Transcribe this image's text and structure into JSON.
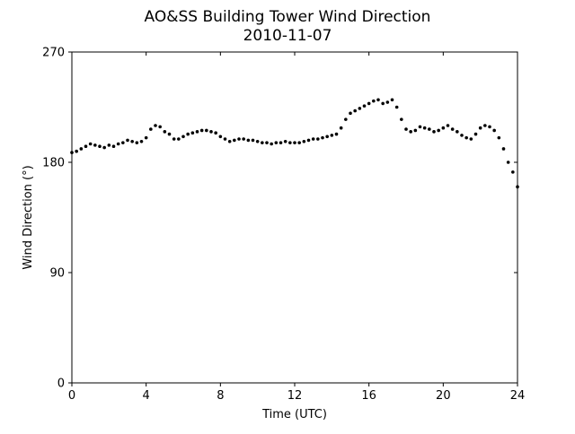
{
  "chart_data": {
    "type": "scatter",
    "title": "AO&SS Building Tower Wind Direction",
    "subtitle": "2010-11-07",
    "xlabel": "Time (UTC)",
    "ylabel": "Wind Direction (°)",
    "xlim": [
      0,
      24
    ],
    "ylim": [
      0,
      270
    ],
    "xticks": [
      "0",
      "4",
      "8",
      "12",
      "16",
      "20",
      "24"
    ],
    "yticks": [
      "0",
      "90",
      "180",
      "270"
    ],
    "grid": false,
    "legend": "none",
    "marker_color": "#000000",
    "series": [
      {
        "x": [
          0,
          0.25,
          0.5,
          0.75,
          1.0,
          1.25,
          1.5,
          1.75,
          2.0,
          2.25,
          2.5,
          2.75,
          3.0,
          3.25,
          3.5,
          3.75,
          4.0,
          4.25,
          4.5,
          4.75,
          5.0,
          5.25,
          5.5,
          5.75,
          6.0,
          6.25,
          6.5,
          6.75,
          7.0,
          7.25,
          7.5,
          7.75,
          8.0,
          8.25,
          8.5,
          8.75,
          9.0,
          9.25,
          9.5,
          9.75,
          10.0,
          10.25,
          10.5,
          10.75,
          11.0,
          11.25,
          11.5,
          11.75,
          12.0,
          12.25,
          12.5,
          12.75,
          13.0,
          13.25,
          13.5,
          13.75,
          14.0,
          14.25,
          14.5,
          14.75,
          15.0,
          15.25,
          15.5,
          15.75,
          16.0,
          16.25,
          16.5,
          16.75,
          17.0,
          17.25,
          17.5,
          17.75,
          18.0,
          18.25,
          18.5,
          18.75,
          19.0,
          19.25,
          19.5,
          19.75,
          20.0,
          20.25,
          20.5,
          20.75,
          21.0,
          21.25,
          21.5,
          21.75,
          22.0,
          22.25,
          22.5,
          22.75,
          23.0,
          23.25,
          23.5,
          23.75,
          24.0
        ],
        "y": [
          188,
          189,
          191,
          193,
          195,
          194,
          193,
          192,
          194,
          193,
          195,
          196,
          198,
          197,
          196,
          197,
          200,
          207,
          210,
          209,
          205,
          203,
          199,
          199,
          201,
          203,
          204,
          205,
          206,
          206,
          205,
          204,
          201,
          199,
          197,
          198,
          199,
          199,
          198,
          198,
          197,
          196,
          196,
          195,
          196,
          196,
          197,
          196,
          196,
          196,
          197,
          198,
          199,
          199,
          200,
          201,
          202,
          203,
          208,
          215,
          220,
          222,
          224,
          226,
          228,
          230,
          231,
          228,
          229,
          231,
          225,
          215,
          207,
          205,
          206,
          209,
          208,
          207,
          205,
          206,
          208,
          210,
          207,
          205,
          202,
          200,
          199,
          203,
          208,
          210,
          209,
          206,
          200,
          191,
          180,
          172,
          160
        ]
      }
    ]
  }
}
